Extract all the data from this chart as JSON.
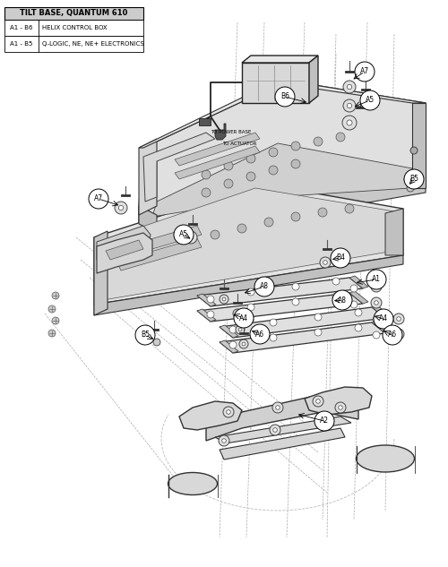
{
  "title": "TILT BASE, QUANTUM 610",
  "background_color": "#ffffff",
  "table_data": [
    {
      "ref": "A1 - B6",
      "desc": "HELIX CONTROL BOX"
    },
    {
      "ref": "A1 - B5",
      "desc": "Q-LOGIC, NE, NE+ ELECTRONICS"
    }
  ],
  "figsize": [
    5.0,
    6.33
  ],
  "dpi": 100
}
